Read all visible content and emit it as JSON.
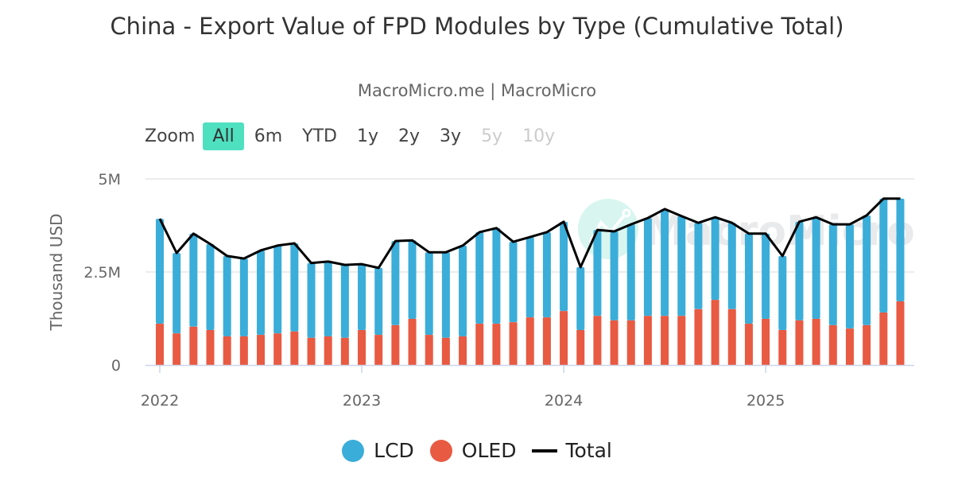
{
  "chart_data": {
    "type": "bar",
    "title": "China - Export Value of FPD Modules by Type (Cumulative Total)",
    "subtitle": "MacroMicro.me | MacroMicro",
    "ylabel": "Thousand USD",
    "ylim": [
      0,
      5000000
    ],
    "yticks": [
      "0",
      "2.5M",
      "5M"
    ],
    "ytick_values": [
      0,
      2500000,
      5000000
    ],
    "xticks": [
      "2022",
      "2023",
      "2024",
      "2025"
    ],
    "stacked": true,
    "grid": true,
    "legend_position": "bottom",
    "watermark": "MacroMicro",
    "x_start": "2022-01",
    "x": [
      "2022-01",
      "2022-02",
      "2022-03",
      "2022-04",
      "2022-05",
      "2022-06",
      "2022-07",
      "2022-08",
      "2022-09",
      "2022-10",
      "2022-11",
      "2022-12",
      "2023-01",
      "2023-02",
      "2023-03",
      "2023-04",
      "2023-05",
      "2023-06",
      "2023-07",
      "2023-08",
      "2023-09",
      "2023-10",
      "2023-11",
      "2023-12",
      "2024-01",
      "2024-02",
      "2024-03",
      "2024-04",
      "2024-05",
      "2024-06",
      "2024-07",
      "2024-08",
      "2024-09",
      "2024-10",
      "2024-11",
      "2024-12",
      "2025-01",
      "2025-02",
      "2025-03",
      "2025-04",
      "2025-05",
      "2025-06",
      "2025-07",
      "2025-08",
      "2025-09"
    ],
    "series": [
      {
        "name": "OLED",
        "type": "bar",
        "color": "#e85a42",
        "values": [
          1.11,
          0.85,
          1.03,
          0.94,
          0.77,
          0.77,
          0.81,
          0.85,
          0.9,
          0.73,
          0.77,
          0.73,
          0.94,
          0.81,
          1.07,
          1.24,
          0.81,
          0.73,
          0.77,
          1.11,
          1.11,
          1.15,
          1.28,
          1.28,
          1.45,
          0.94,
          1.32,
          1.2,
          1.2,
          1.32,
          1.32,
          1.32,
          1.5,
          1.75,
          1.5,
          1.11,
          1.24,
          0.94,
          1.2,
          1.24,
          1.07,
          0.98,
          1.07,
          1.41,
          1.71
        ]
      },
      {
        "name": "LCD",
        "type": "bar",
        "color": "#3badd9",
        "values": [
          2.82,
          2.16,
          2.5,
          2.31,
          2.16,
          2.09,
          2.27,
          2.36,
          2.37,
          2.01,
          2.01,
          1.96,
          1.77,
          1.8,
          2.26,
          2.11,
          2.22,
          2.3,
          2.44,
          2.46,
          2.57,
          2.16,
          2.16,
          2.29,
          2.4,
          1.69,
          2.31,
          2.39,
          2.58,
          2.63,
          2.87,
          2.68,
          2.32,
          2.22,
          2.32,
          2.42,
          2.29,
          1.99,
          2.65,
          2.73,
          2.71,
          2.8,
          2.95,
          3.06,
          2.76
        ]
      },
      {
        "name": "Total",
        "type": "line",
        "color": "#000000",
        "values": [
          3.93,
          3.01,
          3.53,
          3.25,
          2.93,
          2.86,
          3.08,
          3.21,
          3.27,
          2.74,
          2.78,
          2.69,
          2.71,
          2.61,
          3.33,
          3.35,
          3.03,
          3.03,
          3.21,
          3.57,
          3.68,
          3.31,
          3.44,
          3.57,
          3.85,
          2.63,
          3.63,
          3.59,
          3.78,
          3.95,
          4.19,
          4.0,
          3.82,
          3.97,
          3.82,
          3.53,
          3.53,
          2.93,
          3.85,
          3.97,
          3.78,
          3.78,
          4.02,
          4.47,
          4.47
        ]
      }
    ],
    "value_unit": "M"
  },
  "zoom": {
    "label": "Zoom",
    "buttons": [
      "All",
      "6m",
      "YTD",
      "1y",
      "2y",
      "3y",
      "5y",
      "10y"
    ],
    "active": "All",
    "disabled": [
      "5y",
      "10y"
    ]
  },
  "legend": [
    "LCD",
    "OLED",
    "Total"
  ]
}
